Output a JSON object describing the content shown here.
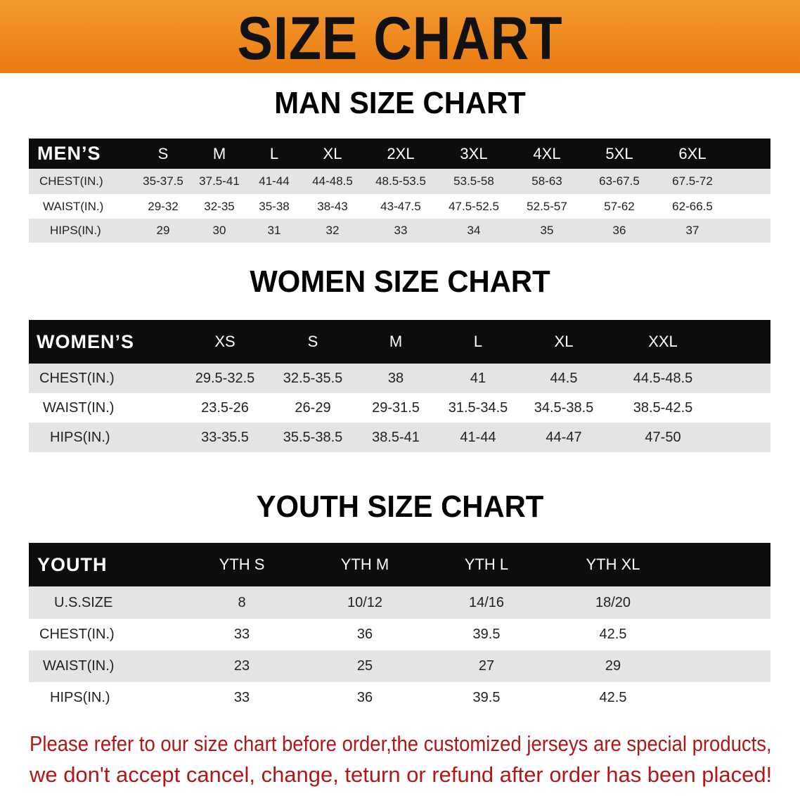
{
  "banner_title": "SIZE CHART",
  "men": {
    "title": "MAN SIZE CHART",
    "header": [
      "MEN’S",
      "S",
      "M",
      "L",
      "XL",
      "2XL",
      "3XL",
      "4XL",
      "5XL",
      "6XL"
    ],
    "rows": [
      [
        "CHEST(IN.)",
        "35-37.5",
        "37.5-41",
        "41-44",
        "44-48.5",
        "48.5-53.5",
        "53.5-58",
        "58-63",
        "63-67.5",
        "67.5-72"
      ],
      [
        "WAIST(IN.)",
        "29-32",
        "32-35",
        "35-38",
        "38-43",
        "43-47.5",
        "47.5-52.5",
        "52.5-57",
        "57-62",
        "62-66.5"
      ],
      [
        "HIPS(IN.)",
        "29",
        "30",
        "31",
        "32",
        "33",
        "34",
        "35",
        "36",
        "37"
      ]
    ]
  },
  "women": {
    "title": "WOMEN SIZE CHART",
    "header": [
      "WOMEN’S",
      "XS",
      "S",
      "M",
      "L",
      "XL",
      "XXL"
    ],
    "rows": [
      [
        "CHEST(IN.)",
        "29.5-32.5",
        "32.5-35.5",
        "38",
        "41",
        "44.5",
        "44.5-48.5"
      ],
      [
        "WAIST(IN.)",
        "23.5-26",
        "26-29",
        "29-31.5",
        "31.5-34.5",
        "34.5-38.5",
        "38.5-42.5"
      ],
      [
        "HIPS(IN.)",
        "33-35.5",
        "35.5-38.5",
        "38.5-41",
        "41-44",
        "44-47",
        "47-50"
      ]
    ]
  },
  "youth": {
    "title": "YOUTH SIZE CHART",
    "header": [
      "YOUTH",
      "YTH S",
      "YTH M",
      "YTH L",
      "YTH XL"
    ],
    "rows": [
      [
        "U.S.SIZE",
        "8",
        "10/12",
        "14/16",
        "18/20"
      ],
      [
        "CHEST(IN.)",
        "33",
        "36",
        "39.5",
        "42.5"
      ],
      [
        "WAIST(IN.)",
        "23",
        "25",
        "27",
        "29"
      ],
      [
        "HIPS(IN.)",
        "33",
        "36",
        "39.5",
        "42.5"
      ]
    ]
  },
  "notice": [
    "Please refer to our size chart before order,the customized jerseys are special products,",
    "we don't accept cancel, change, teturn or refund after order has been placed!"
  ],
  "colors": {
    "banner": "#ef8a1c",
    "header_bg": "#0d0d0d",
    "notice": "#b01818"
  }
}
